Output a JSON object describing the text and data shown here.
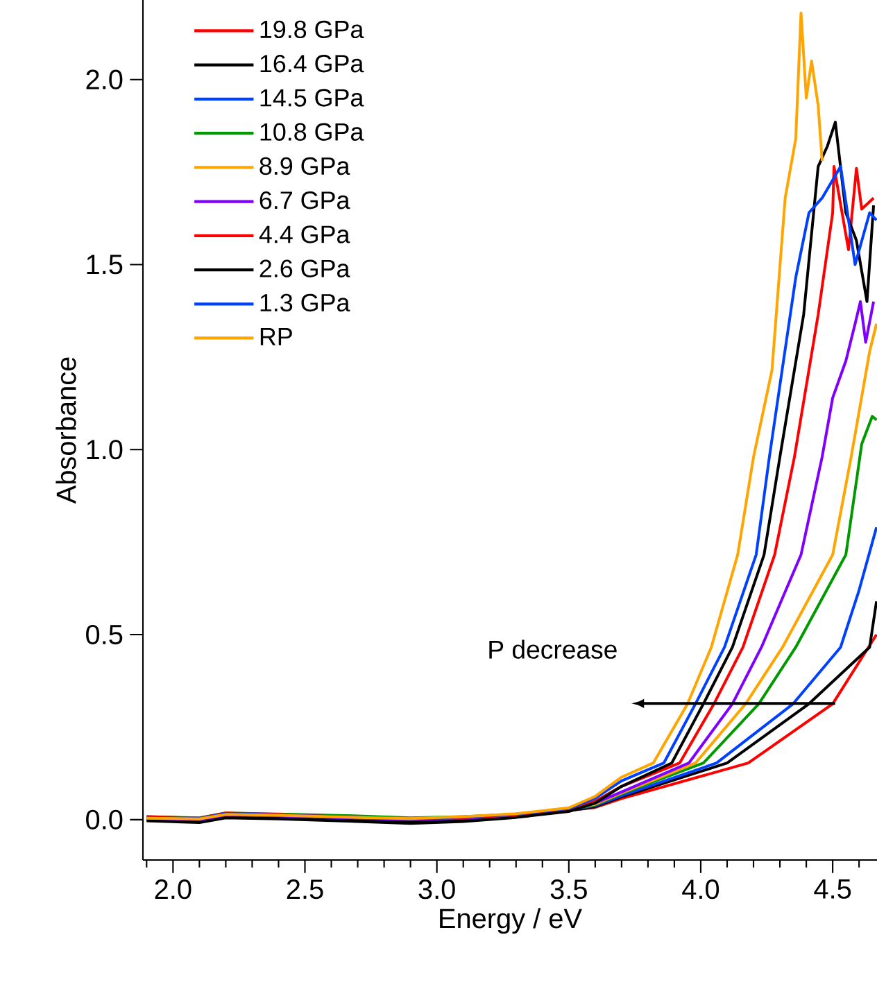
{
  "chart_data": {
    "type": "line",
    "xlabel": "Energy / eV",
    "ylabel": "Absorbance",
    "xlim": [
      1.886,
      4.668
    ],
    "ylim": [
      -0.109,
      2.215
    ],
    "xticks": [
      {
        "value": 1.9,
        "label": null
      },
      {
        "value": 2.0,
        "label": "2.0"
      },
      {
        "value": 2.1,
        "label": null
      },
      {
        "value": 2.2,
        "label": null
      },
      {
        "value": 2.3,
        "label": null
      },
      {
        "value": 2.4,
        "label": null
      },
      {
        "value": 2.5,
        "label": "2.5"
      },
      {
        "value": 2.6,
        "label": null
      },
      {
        "value": 2.7,
        "label": null
      },
      {
        "value": 2.8,
        "label": null
      },
      {
        "value": 2.9,
        "label": null
      },
      {
        "value": 3.0,
        "label": "3.0"
      },
      {
        "value": 3.1,
        "label": null
      },
      {
        "value": 3.2,
        "label": null
      },
      {
        "value": 3.3,
        "label": null
      },
      {
        "value": 3.4,
        "label": null
      },
      {
        "value": 3.5,
        "label": "3.5"
      },
      {
        "value": 3.6,
        "label": null
      },
      {
        "value": 3.7,
        "label": null
      },
      {
        "value": 3.8,
        "label": null
      },
      {
        "value": 3.9,
        "label": null
      },
      {
        "value": 4.0,
        "label": "4.0"
      },
      {
        "value": 4.1,
        "label": null
      },
      {
        "value": 4.2,
        "label": null
      },
      {
        "value": 4.3,
        "label": null
      },
      {
        "value": 4.4,
        "label": null
      },
      {
        "value": 4.5,
        "label": "4.5"
      },
      {
        "value": 4.6,
        "label": null
      }
    ],
    "yticks": [
      {
        "value": 0,
        "label": "0.0"
      },
      {
        "value": 0.5,
        "label": "0.5"
      },
      {
        "value": 1.0,
        "label": "1.0"
      },
      {
        "value": 1.5,
        "label": "1.5"
      },
      {
        "value": 2.0,
        "label": "2.0"
      }
    ],
    "legend": "top left",
    "annotations": [
      "P decrease"
    ],
    "series": [
      {
        "name": "19.8 GPa",
        "color": "#ff0000",
        "x": [
          1.9,
          2.1,
          2.2,
          2.4,
          2.7,
          2.9,
          3.1,
          3.3,
          3.5,
          3.6,
          3.7,
          4.18,
          4.5,
          4.666
        ],
        "values": [
          0.005,
          0.0,
          0.015,
          0.012,
          0.005,
          0.0,
          0.005,
          0.012,
          0.025,
          0.033,
          0.057,
          0.153,
          0.313,
          0.5
        ]
      },
      {
        "name": "16.4 GPa",
        "color": "#000000",
        "x": [
          1.9,
          2.1,
          2.2,
          2.4,
          2.7,
          2.9,
          3.1,
          3.3,
          3.5,
          3.6,
          3.7,
          4.1,
          4.41,
          4.64,
          4.666
        ],
        "values": [
          0.0,
          -0.005,
          0.01,
          0.008,
          0.0,
          -0.005,
          0.0,
          0.01,
          0.024,
          0.035,
          0.062,
          0.153,
          0.313,
          0.466,
          0.59
        ]
      },
      {
        "name": "14.5 GPa",
        "color": "#0040ff",
        "x": [
          1.9,
          2.1,
          2.2,
          2.4,
          2.7,
          2.9,
          3.1,
          3.3,
          3.5,
          3.6,
          3.7,
          4.06,
          4.35,
          4.53,
          4.6,
          4.666
        ],
        "values": [
          0.005,
          0.0,
          0.015,
          0.012,
          0.005,
          0.0,
          0.005,
          0.012,
          0.026,
          0.038,
          0.065,
          0.153,
          0.313,
          0.466,
          0.62,
          0.79
        ]
      },
      {
        "name": "10.8 GPa",
        "color": "#009900",
        "x": [
          1.9,
          2.1,
          2.2,
          2.4,
          2.7,
          2.9,
          3.1,
          3.3,
          3.5,
          3.6,
          3.7,
          4.01,
          4.22,
          4.36,
          4.55,
          4.61,
          4.65,
          4.666
        ],
        "values": [
          0.008,
          0.005,
          0.018,
          0.015,
          0.01,
          0.005,
          0.008,
          0.014,
          0.027,
          0.04,
          0.07,
          0.153,
          0.313,
          0.466,
          0.716,
          1.015,
          1.09,
          1.08
        ]
      },
      {
        "name": "8.9 GPa",
        "color": "#ffa500",
        "x": [
          1.9,
          2.1,
          2.2,
          2.4,
          2.7,
          2.9,
          3.1,
          3.3,
          3.5,
          3.6,
          3.7,
          3.98,
          4.17,
          4.31,
          4.5,
          4.57,
          4.64,
          4.666
        ],
        "values": [
          0.005,
          0.002,
          0.015,
          0.012,
          0.006,
          0.002,
          0.006,
          0.013,
          0.027,
          0.042,
          0.072,
          0.153,
          0.313,
          0.466,
          0.716,
          0.98,
          1.265,
          1.34
        ]
      },
      {
        "name": "6.7 GPa",
        "color": "#7f00ff",
        "x": [
          1.9,
          2.1,
          2.2,
          2.4,
          2.7,
          2.9,
          3.1,
          3.3,
          3.5,
          3.6,
          3.7,
          3.955,
          4.12,
          4.23,
          4.38,
          4.46,
          4.5,
          4.55,
          4.585,
          4.605,
          4.625,
          4.655
        ],
        "values": [
          0.0,
          -0.003,
          0.012,
          0.01,
          0.004,
          0.0,
          0.004,
          0.012,
          0.026,
          0.045,
          0.075,
          0.153,
          0.313,
          0.466,
          0.716,
          0.98,
          1.14,
          1.24,
          1.34,
          1.4,
          1.29,
          1.4
        ]
      },
      {
        "name": "4.4 GPa",
        "color": "#ff0000",
        "x": [
          1.9,
          2.1,
          2.2,
          2.4,
          2.7,
          2.9,
          3.1,
          3.3,
          3.5,
          3.6,
          3.7,
          3.92,
          4.05,
          4.16,
          4.28,
          4.355,
          4.445,
          4.5,
          4.505,
          4.56,
          4.59,
          4.61,
          4.655
        ],
        "values": [
          0.008,
          0.004,
          0.018,
          0.014,
          0.006,
          0.002,
          0.006,
          0.013,
          0.027,
          0.05,
          0.09,
          0.153,
          0.313,
          0.466,
          0.716,
          0.98,
          1.365,
          1.64,
          1.765,
          1.54,
          1.76,
          1.65,
          1.68
        ]
      },
      {
        "name": "2.6 GPa",
        "color": "#000000",
        "x": [
          1.9,
          2.1,
          2.2,
          2.4,
          2.7,
          2.9,
          3.1,
          3.3,
          3.5,
          3.6,
          3.7,
          3.89,
          4.01,
          4.12,
          4.24,
          4.3,
          4.39,
          4.445,
          4.48,
          4.51,
          4.55,
          4.59,
          4.63,
          4.655
        ],
        "values": [
          -0.003,
          -0.008,
          0.005,
          0.002,
          -0.005,
          -0.01,
          -0.005,
          0.006,
          0.022,
          0.045,
          0.09,
          0.153,
          0.313,
          0.466,
          0.716,
          0.98,
          1.365,
          1.765,
          1.82,
          1.885,
          1.64,
          1.565,
          1.4,
          1.66
        ]
      },
      {
        "name": "1.3 GPa",
        "color": "#0040ff",
        "x": [
          1.9,
          2.1,
          2.2,
          2.4,
          2.7,
          2.9,
          3.1,
          3.3,
          3.5,
          3.6,
          3.7,
          3.86,
          3.98,
          4.09,
          4.21,
          4.26,
          4.36,
          4.41,
          4.46,
          4.53,
          4.585,
          4.64,
          4.666
        ],
        "values": [
          0.006,
          0.003,
          0.016,
          0.013,
          0.006,
          0.002,
          0.007,
          0.015,
          0.03,
          0.058,
          0.105,
          0.153,
          0.313,
          0.466,
          0.716,
          0.98,
          1.465,
          1.64,
          1.68,
          1.765,
          1.5,
          1.64,
          1.62
        ]
      },
      {
        "name": "RP",
        "color": "#ffa500",
        "x": [
          1.9,
          2.1,
          2.2,
          2.4,
          2.7,
          2.9,
          3.1,
          3.3,
          3.5,
          3.6,
          3.7,
          3.82,
          3.95,
          4.04,
          4.14,
          4.2,
          4.27,
          4.32,
          4.36,
          4.38,
          4.4,
          4.42,
          4.445,
          4.46
        ],
        "values": [
          0.004,
          0.002,
          0.014,
          0.012,
          0.006,
          0.003,
          0.008,
          0.016,
          0.032,
          0.063,
          0.115,
          0.153,
          0.313,
          0.466,
          0.716,
          0.98,
          1.215,
          1.68,
          1.84,
          2.18,
          1.95,
          2.05,
          1.93,
          1.78
        ]
      }
    ]
  }
}
